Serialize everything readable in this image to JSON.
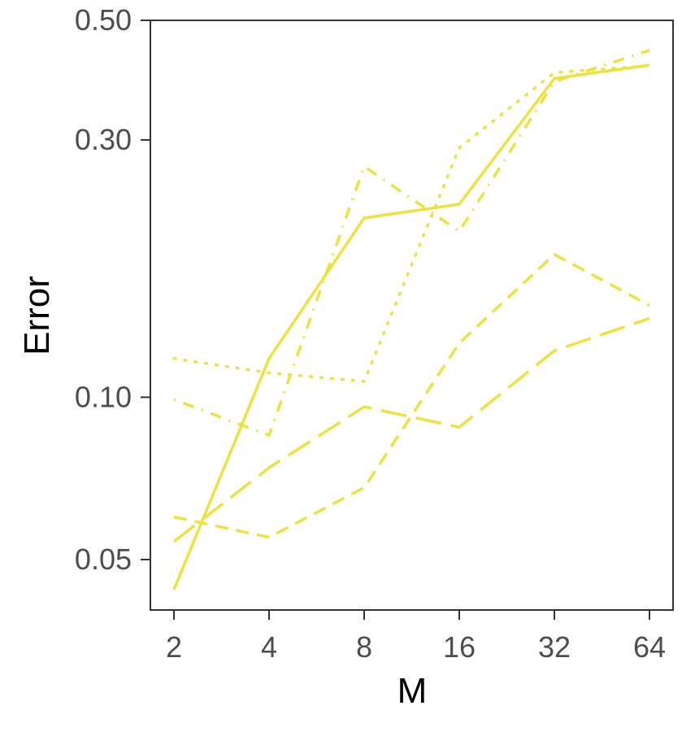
{
  "chart_data": {
    "type": "line",
    "title": "",
    "xlabel": "M",
    "ylabel": "Error",
    "x": [
      2,
      4,
      8,
      16,
      32,
      64
    ],
    "x_scale": "log2",
    "y_scale": "log10",
    "ylim": [
      0.04,
      0.5
    ],
    "xticks": [
      "2",
      "4",
      "8",
      "16",
      "32",
      "64"
    ],
    "yticks": [
      {
        "value": 0.05,
        "label": "0.05"
      },
      {
        "value": 0.1,
        "label": "0.10"
      },
      {
        "value": 0.3,
        "label": "0.30"
      },
      {
        "value": 0.5,
        "label": "0.50"
      }
    ],
    "grid": false,
    "legend": "none",
    "line_color": "#ede23f",
    "series": [
      {
        "style": "solid",
        "values": [
          0.044,
          0.118,
          0.215,
          0.228,
          0.39,
          0.413
        ]
      },
      {
        "style": "dotted",
        "values": [
          0.118,
          0.111,
          0.107,
          0.29,
          0.4,
          0.412
        ]
      },
      {
        "style": "dotdash",
        "values": [
          0.099,
          0.085,
          0.268,
          0.203,
          0.385,
          0.44
        ]
      },
      {
        "style": "dashed",
        "values": [
          0.06,
          0.055,
          0.068,
          0.126,
          0.184,
          0.148
        ]
      },
      {
        "style": "longdash",
        "values": [
          0.054,
          0.074,
          0.096,
          0.088,
          0.122,
          0.14
        ]
      }
    ]
  }
}
